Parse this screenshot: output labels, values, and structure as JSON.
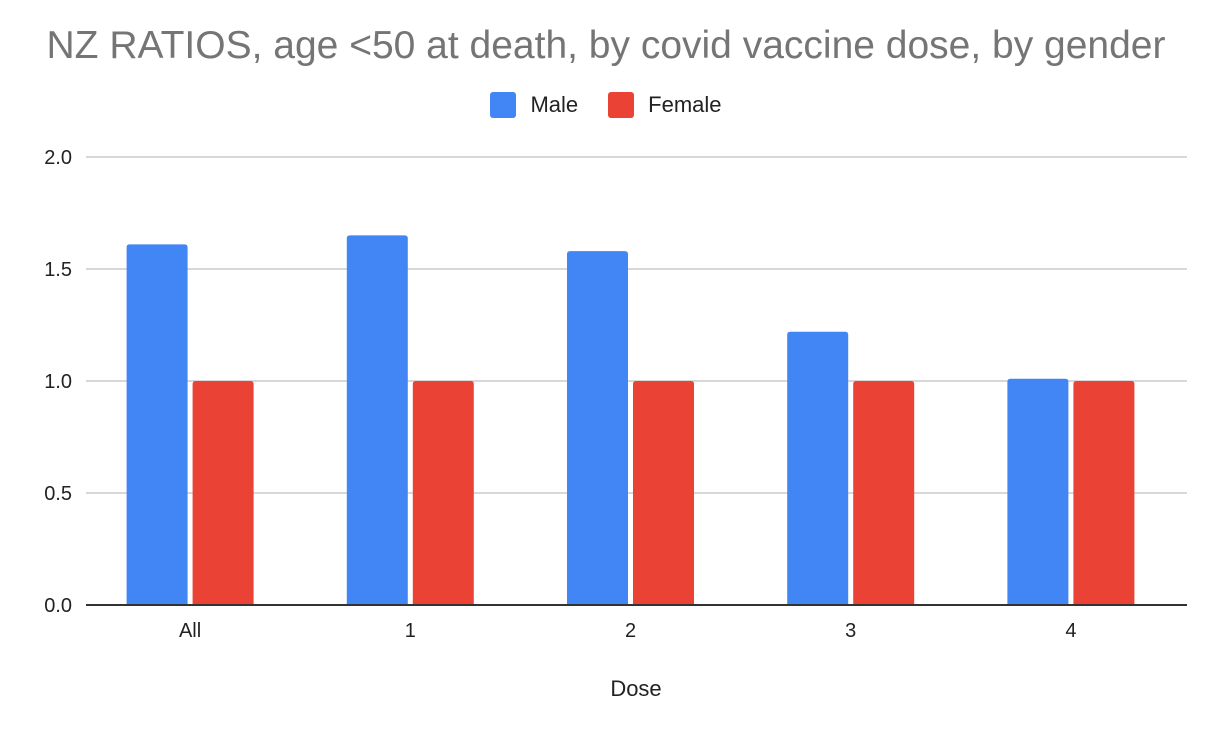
{
  "chart_data": {
    "type": "bar",
    "title": "NZ RATIOS, age <50 at death, by covid vaccine dose, by gender",
    "xlabel": "Dose",
    "ylabel": "",
    "categories": [
      "All",
      "1",
      "2",
      "3",
      "4"
    ],
    "series": [
      {
        "name": "Male",
        "color": "#4285F4",
        "values": [
          1.61,
          1.65,
          1.58,
          1.22,
          1.01
        ]
      },
      {
        "name": "Female",
        "color": "#EA4335",
        "values": [
          1.0,
          1.0,
          1.0,
          1.0,
          1.0
        ]
      }
    ],
    "ylim": [
      0,
      2.0
    ],
    "yticks": [
      "0.0",
      "0.5",
      "1.0",
      "1.5",
      "2.0"
    ],
    "grid": true,
    "legend_position": "top"
  }
}
